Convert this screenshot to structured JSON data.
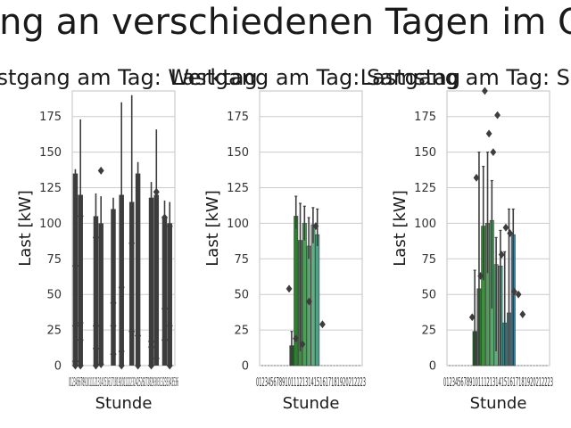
{
  "figure": {
    "suptitle": "Lastgang an verschiedenen Tagen im Quartal"
  },
  "colors": {
    "axes_edge": "#cccccc",
    "grid": "#cccccc",
    "tick_text": "#333333",
    "label_text": "#1a1a1a",
    "box_dark": "#3d3d3d",
    "palette": [
      "#1b5e20",
      "#2e7d32",
      "#3f8e3e",
      "#4f9d5a",
      "#5aa56e",
      "#5fae7d",
      "#4f9f8c",
      "#3f9095",
      "#3d8ea0",
      "#3a85a8"
    ]
  },
  "chart_data": [
    {
      "type": "box",
      "title": "Lastgang am Tag: Werktag",
      "xlabel": "Stunde",
      "ylabel": "Last [kW]",
      "ylim": [
        0,
        193
      ],
      "yticks": [
        0,
        25,
        50,
        75,
        100,
        125,
        150,
        175
      ],
      "xtick_text": "0123456789101112131415161718192021222324252627282930313233343536",
      "grid": true,
      "boxes": [
        {
          "x": 0.03,
          "q1": 0,
          "q3": 135,
          "whisker_low": 0,
          "whisker_high": 138,
          "outliers": [
            70,
            28,
            0,
            3
          ]
        },
        {
          "x": 0.08,
          "q1": 0,
          "q3": 120,
          "whisker_low": 0,
          "whisker_high": 173,
          "outliers": [
            105,
            30,
            18,
            0
          ]
        },
        {
          "x": 0.23,
          "q1": 0,
          "q3": 105,
          "whisker_low": 0,
          "whisker_high": 121,
          "outliers": [
            90,
            28,
            12,
            0
          ]
        },
        {
          "x": 0.28,
          "q1": 0,
          "q3": 100,
          "whisker_low": 0,
          "whisker_high": 119,
          "outliers": [
            137,
            1
          ]
        },
        {
          "x": 0.4,
          "q1": 0,
          "q3": 110,
          "whisker_low": 0,
          "whisker_high": 118,
          "outliers": [
            44,
            28,
            8
          ]
        },
        {
          "x": 0.48,
          "q1": 0,
          "q3": 120,
          "whisker_low": 0,
          "whisker_high": 185,
          "outliers": [
            55,
            10,
            0
          ]
        },
        {
          "x": 0.58,
          "q1": 0,
          "q3": 115,
          "whisker_low": 0,
          "whisker_high": 190,
          "outliers": [
            86,
            24
          ]
        },
        {
          "x": 0.64,
          "q1": 0,
          "q3": 135,
          "whisker_low": 0,
          "whisker_high": 143,
          "outliers": [
            21,
            0
          ]
        },
        {
          "x": 0.77,
          "q1": 0,
          "q3": 118,
          "whisker_low": 0,
          "whisker_high": 129,
          "outliers": [
            17,
            13,
            0
          ]
        },
        {
          "x": 0.82,
          "q1": 0,
          "q3": 120,
          "whisker_low": 0,
          "whisker_high": 166,
          "outliers": [
            122,
            5
          ]
        },
        {
          "x": 0.9,
          "q1": 0,
          "q3": 105,
          "whisker_low": 0,
          "whisker_high": 116,
          "outliers": [
            104,
            40,
            18
          ]
        },
        {
          "x": 0.95,
          "q1": 0,
          "q3": 100,
          "whisker_low": 0,
          "whisker_high": 115,
          "outliers": [
            98,
            28,
            0
          ]
        }
      ]
    },
    {
      "type": "bar",
      "title": "Lastgang am Tag: Samstag",
      "xlabel": "Stunde",
      "ylabel": "Last [kW]",
      "ylim": [
        0,
        193
      ],
      "yticks": [
        0,
        25,
        50,
        75,
        100,
        125,
        150,
        175
      ],
      "xtick_text": "01234567891011121314151617181920212223",
      "grid": true,
      "categories": [
        "7",
        "8",
        "9",
        "10",
        "11",
        "12",
        "13"
      ],
      "values": [
        14,
        105,
        88,
        100,
        84,
        99,
        92
      ],
      "errors": [
        [
          0,
          24
        ],
        [
          96,
          119
        ],
        [
          10,
          114
        ],
        [
          88,
          112
        ],
        [
          75,
          104
        ],
        [
          86,
          111
        ],
        [
          84,
          110
        ]
      ],
      "outliers": [
        54,
        19,
        15,
        45,
        98,
        29
      ]
    },
    {
      "type": "bar",
      "title": "Lastgang am Tag: Sonntag",
      "xlabel": "Stunde",
      "ylabel": "Last [kW]",
      "ylim": [
        0,
        193
      ],
      "yticks": [
        0,
        25,
        50,
        75,
        100,
        125,
        150,
        175
      ],
      "xtick_text": "01234567891011121314151617181920212223",
      "grid": true,
      "categories": [
        "6",
        "7",
        "8",
        "9",
        "10",
        "11",
        "12",
        "13",
        "14",
        "15",
        "16"
      ],
      "values": [
        24,
        54,
        98,
        100,
        102,
        71,
        70,
        30,
        37,
        92,
        0
      ],
      "errors": [
        [
          0,
          67
        ],
        [
          0,
          150
        ],
        [
          60,
          140
        ],
        [
          65,
          150
        ],
        [
          40,
          130
        ],
        [
          10,
          90
        ],
        [
          0,
          95
        ],
        [
          0,
          80
        ],
        [
          0,
          110
        ],
        [
          0,
          110
        ],
        [
          0,
          0
        ]
      ],
      "outliers": [
        34,
        132,
        63,
        193,
        163,
        150,
        176,
        78,
        97,
        93,
        52,
        50,
        36
      ]
    }
  ]
}
